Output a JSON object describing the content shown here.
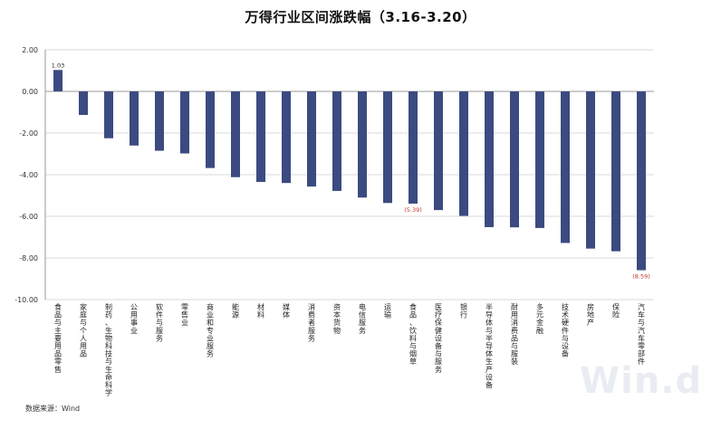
{
  "chart_data": {
    "type": "bar",
    "title": "万得行业区间涨跌幅（3.16-3.20）",
    "source": "数据来源：Wind",
    "watermark": "Win.d",
    "ylim": [
      -10,
      2
    ],
    "yticks": [
      "2.00",
      "0.00",
      "-2.00",
      "-4.00",
      "-6.00",
      "-8.00",
      "-10.00"
    ],
    "grid": true,
    "bar_color": "#3b4a80",
    "label_color_pos": "#222222",
    "label_color_neg": "#c0392b",
    "categories": [
      "食品与主要用品零售",
      "家庭与个人用品",
      "制药、生物科技与生命科学",
      "公用事业",
      "软件与服务",
      "零售业",
      "商业和专业服务",
      "能源",
      "材料",
      "媒体",
      "消费者服务",
      "资本货物",
      "电信服务",
      "运输",
      "食品、饮料与烟草",
      "医疗保健设备与服务",
      "银行",
      "半导体与半导体生产设备",
      "耐用消费品与服装",
      "多元金融",
      "技术硬件与设备",
      "房地产",
      "保险",
      "汽车与汽车零部件"
    ],
    "values": [
      1.03,
      -1.13,
      -2.25,
      -2.6,
      -2.85,
      -2.98,
      -3.68,
      -4.12,
      -4.35,
      -4.4,
      -4.57,
      -4.78,
      -5.1,
      -5.36,
      -5.39,
      -5.7,
      -5.98,
      -6.52,
      -6.53,
      -6.56,
      -7.28,
      -7.55,
      -7.68,
      -8.59
    ],
    "data_labels": [
      {
        "index": 0,
        "text": "1.03"
      },
      {
        "index": 14,
        "text": "(5.39)"
      },
      {
        "index": 23,
        "text": "(8.59)"
      }
    ]
  }
}
